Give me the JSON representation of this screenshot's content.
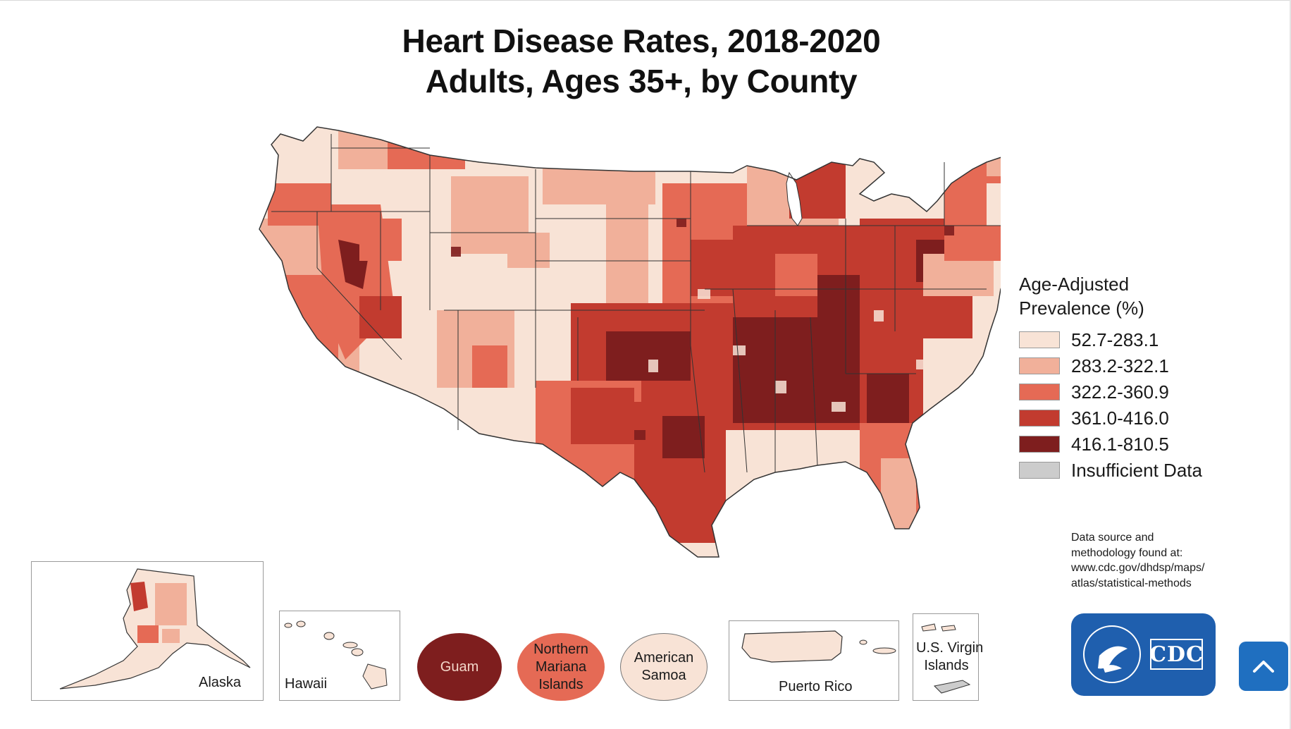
{
  "title": {
    "line1": "Heart Disease Rates, 2018-2020",
    "line2": "Adults, Ages 35+, by County"
  },
  "legend": {
    "title_line1": "Age-Adjusted",
    "title_line2": "Prevalence (%)",
    "items": [
      {
        "label": "52.7-283.1",
        "color": "#f8e3d6"
      },
      {
        "label": "283.2-322.1",
        "color": "#f1b09a"
      },
      {
        "label": "322.2-360.9",
        "color": "#e56a55"
      },
      {
        "label": "361.0-416.0",
        "color": "#c23b2f"
      },
      {
        "label": "416.1-810.5",
        "color": "#7e1e1e"
      },
      {
        "label": "Insufficient Data",
        "color": "#cccccc"
      }
    ]
  },
  "source": {
    "line1": "Data source and",
    "line2": "methodology found at:",
    "line3": "www.cdc.gov/dhdsp/maps/",
    "line4": "atlas/statistical-methods"
  },
  "insets": {
    "alaska": "Alaska",
    "hawaii": "Hawaii",
    "puerto_rico": "Puerto Rico",
    "usvi_line1": "U.S. Virgin",
    "usvi_line2": "Islands"
  },
  "territories": {
    "guam": {
      "label": "Guam",
      "color": "#7e1e1e"
    },
    "cnmi": {
      "line1": "Northern",
      "line2": "Mariana",
      "line3": "Islands",
      "color": "#e56a55"
    },
    "samoa": {
      "line1": "American",
      "line2": "Samoa",
      "color": "#f8e3d6"
    }
  },
  "logo": {
    "text": "CDC"
  },
  "map_icons": [
    "cdc-logo-icon",
    "scroll-to-top-icon"
  ]
}
